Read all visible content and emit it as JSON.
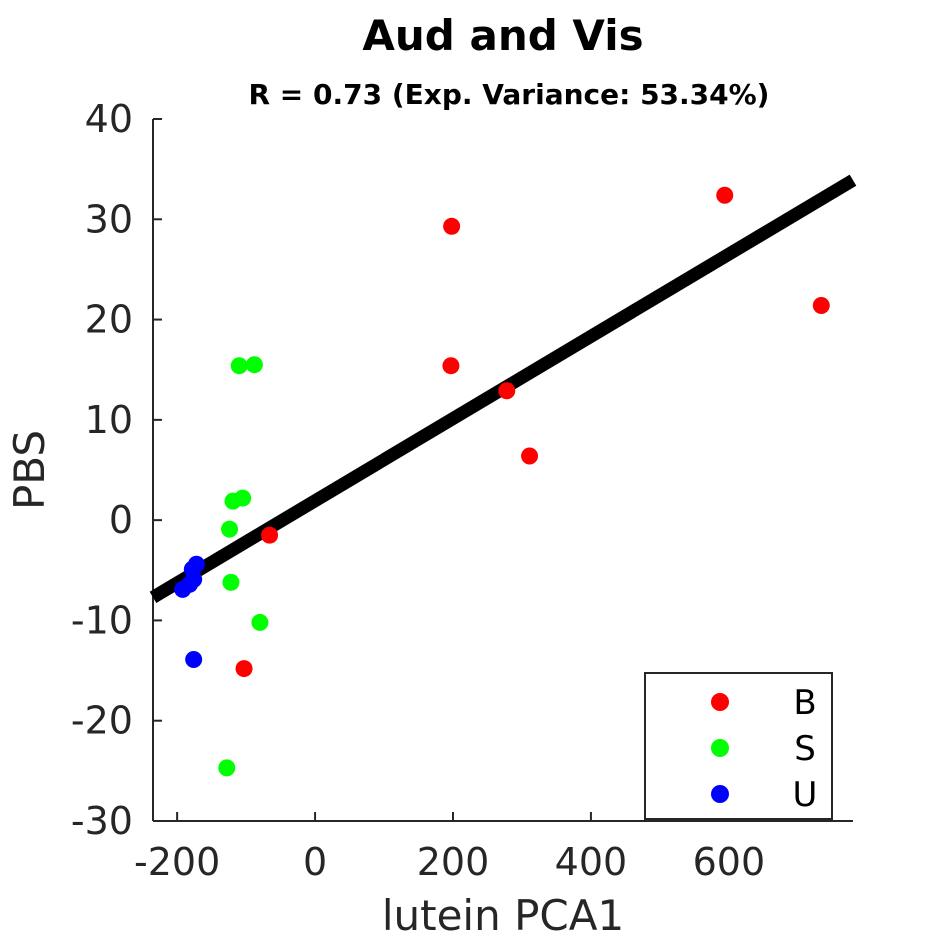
{
  "chart_data": {
    "type": "scatter",
    "title": "Aud and Vis",
    "subtitle": "R = 0.73 (Exp. Variance: 53.34%)",
    "xlabel": "lutein PCA1",
    "ylabel": "PBS",
    "xlim": [
      -235,
      780
    ],
    "ylim": [
      -30,
      40
    ],
    "xticks": [
      -200,
      0,
      200,
      400,
      600
    ],
    "yticks": [
      -30,
      -20,
      -10,
      0,
      10,
      20,
      30,
      40
    ],
    "grid": false,
    "legend_position": "bottom-right",
    "series": [
      {
        "name": "B",
        "color": "#ff0000",
        "points": [
          [
            -66,
            -1.5
          ],
          [
            -103,
            -14.8
          ],
          [
            197,
            15.4
          ],
          [
            198,
            29.3
          ],
          [
            278,
            12.9
          ],
          [
            311,
            6.4
          ],
          [
            594,
            32.4
          ],
          [
            734,
            21.4
          ]
        ]
      },
      {
        "name": "S",
        "color": "#00ff00",
        "points": [
          [
            -110,
            15.4
          ],
          [
            -88,
            15.5
          ],
          [
            -119,
            1.9
          ],
          [
            -105,
            2.2
          ],
          [
            -124,
            -0.9
          ],
          [
            -122,
            -6.2
          ],
          [
            -80,
            -10.2
          ],
          [
            -128,
            -24.7
          ]
        ]
      },
      {
        "name": "U",
        "color": "#0000ff",
        "points": [
          [
            -172,
            -4.4
          ],
          [
            -178,
            -4.9
          ],
          [
            -176,
            -5.9
          ],
          [
            -182,
            -6.4
          ],
          [
            -192,
            -6.9
          ],
          [
            -176,
            -13.9
          ]
        ]
      }
    ],
    "fit_line": {
      "color": "#000000",
      "x": [
        -235,
        780
      ],
      "y": [
        -7.7,
        33.9
      ]
    }
  }
}
